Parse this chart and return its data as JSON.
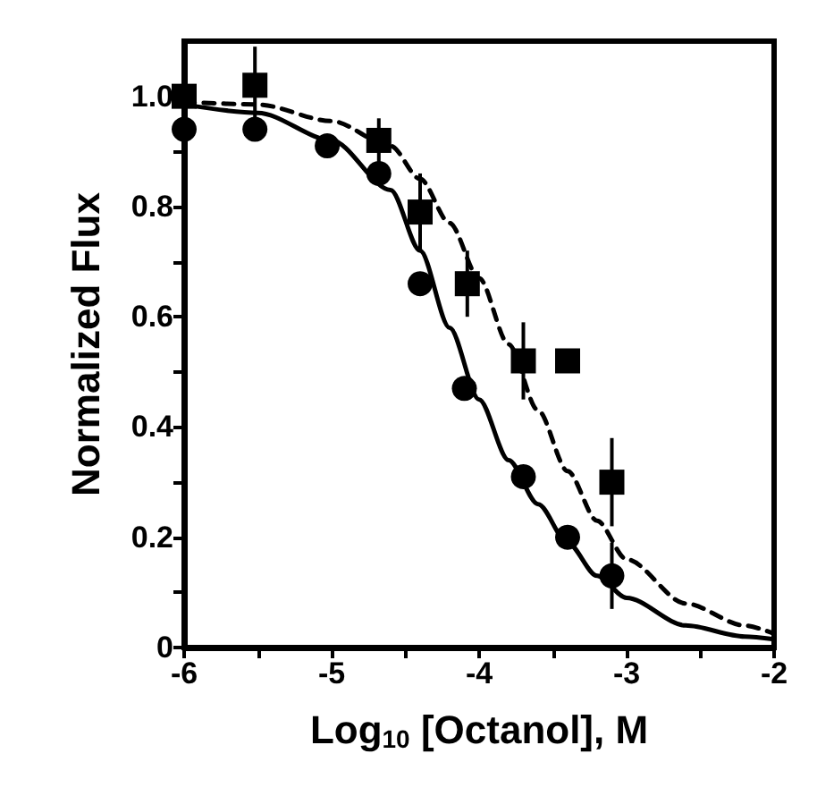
{
  "chart_data": {
    "type": "scatter",
    "xlabel": "Log$_{10}$ [Octanol], M",
    "ylabel": "Normalized Flux",
    "xlim": [
      -6,
      -2
    ],
    "xticks": [
      -6,
      -5,
      -4,
      -3,
      -2
    ],
    "ylim": [
      0,
      1.1
    ],
    "yticks": [
      {
        "value": 0,
        "label": "0"
      },
      0.2,
      0.4,
      0.6,
      0.8,
      {
        "value": 1,
        "label": "1.0"
      }
    ],
    "grid": false,
    "series": [
      {
        "marker": "circle",
        "color": "#000000",
        "x": [
          -6,
          -5.52,
          -5.03,
          -4.68,
          -4.4,
          -4.1,
          -3.7,
          -3.4,
          -3.1
        ],
        "values": [
          0.94,
          0.94,
          0.91,
          0.86,
          0.66,
          0.47,
          0.31,
          0.2,
          0.13
        ],
        "errors": [
          null,
          null,
          null,
          null,
          null,
          null,
          null,
          null,
          0.06
        ]
      },
      {
        "marker": "square",
        "color": "#000000",
        "x": [
          -6,
          -5.52,
          -4.68,
          -4.4,
          -4.08,
          -3.7,
          -3.4,
          -3.1
        ],
        "values": [
          1.0,
          1.02,
          0.92,
          0.79,
          0.66,
          0.52,
          0.52,
          0.3
        ],
        "errors": [
          null,
          0.07,
          0.04,
          0.07,
          0.06,
          0.07,
          null,
          0.08
        ]
      },
      {
        "type": "line",
        "line_style": "solid",
        "marker": "none",
        "color": "#000000",
        "x": [
          -6,
          -5.5,
          -5,
          -4.6,
          -4.4,
          -4.2,
          -4,
          -3.8,
          -3.6,
          -3.4,
          -3.2,
          -3,
          -2.6,
          -2.2,
          -2
        ],
        "values": [
          0.985,
          0.97,
          0.92,
          0.83,
          0.72,
          0.58,
          0.45,
          0.34,
          0.26,
          0.19,
          0.13,
          0.09,
          0.04,
          0.02,
          0.015
        ]
      },
      {
        "type": "line",
        "line_style": "dashed",
        "marker": "none",
        "color": "#000000",
        "x": [
          -6,
          -5.5,
          -5,
          -4.6,
          -4.4,
          -4.2,
          -4,
          -3.8,
          -3.6,
          -3.4,
          -3.2,
          -3,
          -2.6,
          -2.2,
          -2
        ],
        "values": [
          0.99,
          0.985,
          0.955,
          0.91,
          0.85,
          0.77,
          0.67,
          0.55,
          0.43,
          0.32,
          0.23,
          0.16,
          0.08,
          0.04,
          0.025
        ]
      }
    ]
  }
}
